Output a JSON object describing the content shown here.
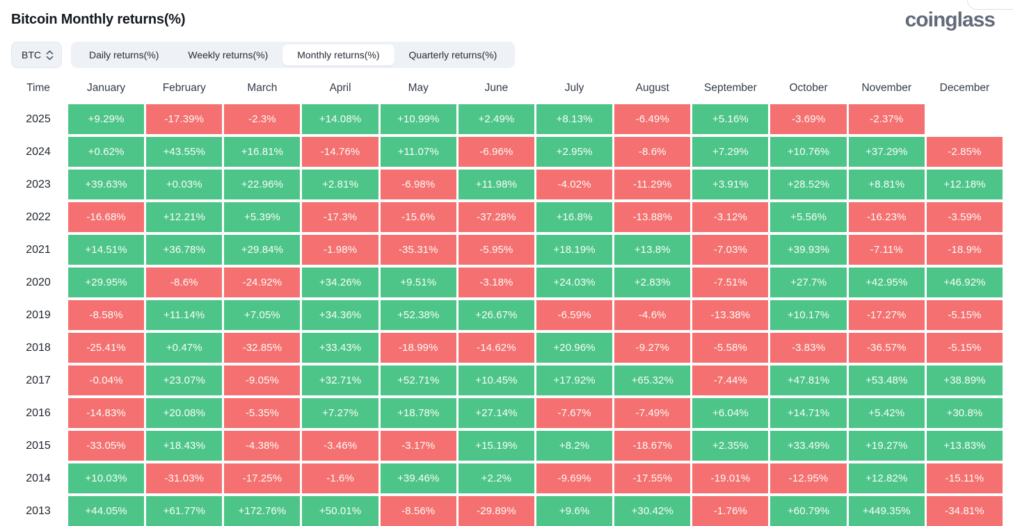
{
  "page": {
    "title": "Bitcoin Monthly returns(%)",
    "brand": "coinglass"
  },
  "controls": {
    "symbol_select": {
      "value": "BTC"
    },
    "tabs": [
      {
        "label": "Daily returns(%)",
        "active": false
      },
      {
        "label": "Weekly returns(%)",
        "active": false
      },
      {
        "label": "Monthly returns(%)",
        "active": true
      },
      {
        "label": "Quarterly returns(%)",
        "active": false
      }
    ]
  },
  "chart_data": {
    "type": "heatmap",
    "title": "Bitcoin Monthly returns(%)",
    "unit": "%",
    "row_header": "Time",
    "columns": [
      "January",
      "February",
      "March",
      "April",
      "May",
      "June",
      "July",
      "August",
      "September",
      "October",
      "November",
      "December"
    ],
    "rows": [
      {
        "year": "2025",
        "values": [
          9.29,
          -17.39,
          -2.3,
          14.08,
          10.99,
          2.49,
          8.13,
          -6.49,
          5.16,
          -3.69,
          -2.37,
          null
        ]
      },
      {
        "year": "2024",
        "values": [
          0.62,
          43.55,
          16.81,
          -14.76,
          11.07,
          -6.96,
          2.95,
          -8.6,
          7.29,
          10.76,
          37.29,
          -2.85
        ]
      },
      {
        "year": "2023",
        "values": [
          39.63,
          0.03,
          22.96,
          2.81,
          -6.98,
          11.98,
          -4.02,
          -11.29,
          3.91,
          28.52,
          8.81,
          12.18
        ]
      },
      {
        "year": "2022",
        "values": [
          -16.68,
          12.21,
          5.39,
          -17.3,
          -15.6,
          -37.28,
          16.8,
          -13.88,
          -3.12,
          5.56,
          -16.23,
          -3.59
        ]
      },
      {
        "year": "2021",
        "values": [
          14.51,
          36.78,
          29.84,
          -1.98,
          -35.31,
          -5.95,
          18.19,
          13.8,
          -7.03,
          39.93,
          -7.11,
          -18.9
        ]
      },
      {
        "year": "2020",
        "values": [
          29.95,
          -8.6,
          -24.92,
          34.26,
          9.51,
          -3.18,
          24.03,
          2.83,
          -7.51,
          27.7,
          42.95,
          46.92
        ]
      },
      {
        "year": "2019",
        "values": [
          -8.58,
          11.14,
          7.05,
          34.36,
          52.38,
          26.67,
          -6.59,
          -4.6,
          -13.38,
          10.17,
          -17.27,
          -5.15
        ]
      },
      {
        "year": "2018",
        "values": [
          -25.41,
          0.47,
          -32.85,
          33.43,
          -18.99,
          -14.62,
          20.96,
          -9.27,
          -5.58,
          -3.83,
          -36.57,
          -5.15
        ]
      },
      {
        "year": "2017",
        "values": [
          -0.04,
          23.07,
          -9.05,
          32.71,
          52.71,
          10.45,
          17.92,
          65.32,
          -7.44,
          47.81,
          53.48,
          38.89
        ]
      },
      {
        "year": "2016",
        "values": [
          -14.83,
          20.08,
          -5.35,
          7.27,
          18.78,
          27.14,
          -7.67,
          -7.49,
          6.04,
          14.71,
          5.42,
          30.8
        ]
      },
      {
        "year": "2015",
        "values": [
          -33.05,
          18.43,
          -4.38,
          -3.46,
          -3.17,
          15.19,
          8.2,
          -18.67,
          2.35,
          33.49,
          19.27,
          13.83
        ]
      },
      {
        "year": "2014",
        "values": [
          10.03,
          -31.03,
          -17.25,
          -1.6,
          39.46,
          2.2,
          -9.69,
          -17.55,
          -19.01,
          -12.95,
          12.82,
          -15.11
        ]
      },
      {
        "year": "2013",
        "values": [
          44.05,
          61.77,
          172.76,
          50.01,
          -8.56,
          -29.89,
          9.6,
          30.42,
          -1.76,
          60.79,
          449.35,
          -34.81
        ]
      }
    ],
    "value_format": "signed_percent",
    "colors": {
      "positive": "#4dc589",
      "negative": "#f57070",
      "empty": "#ffffff"
    }
  }
}
